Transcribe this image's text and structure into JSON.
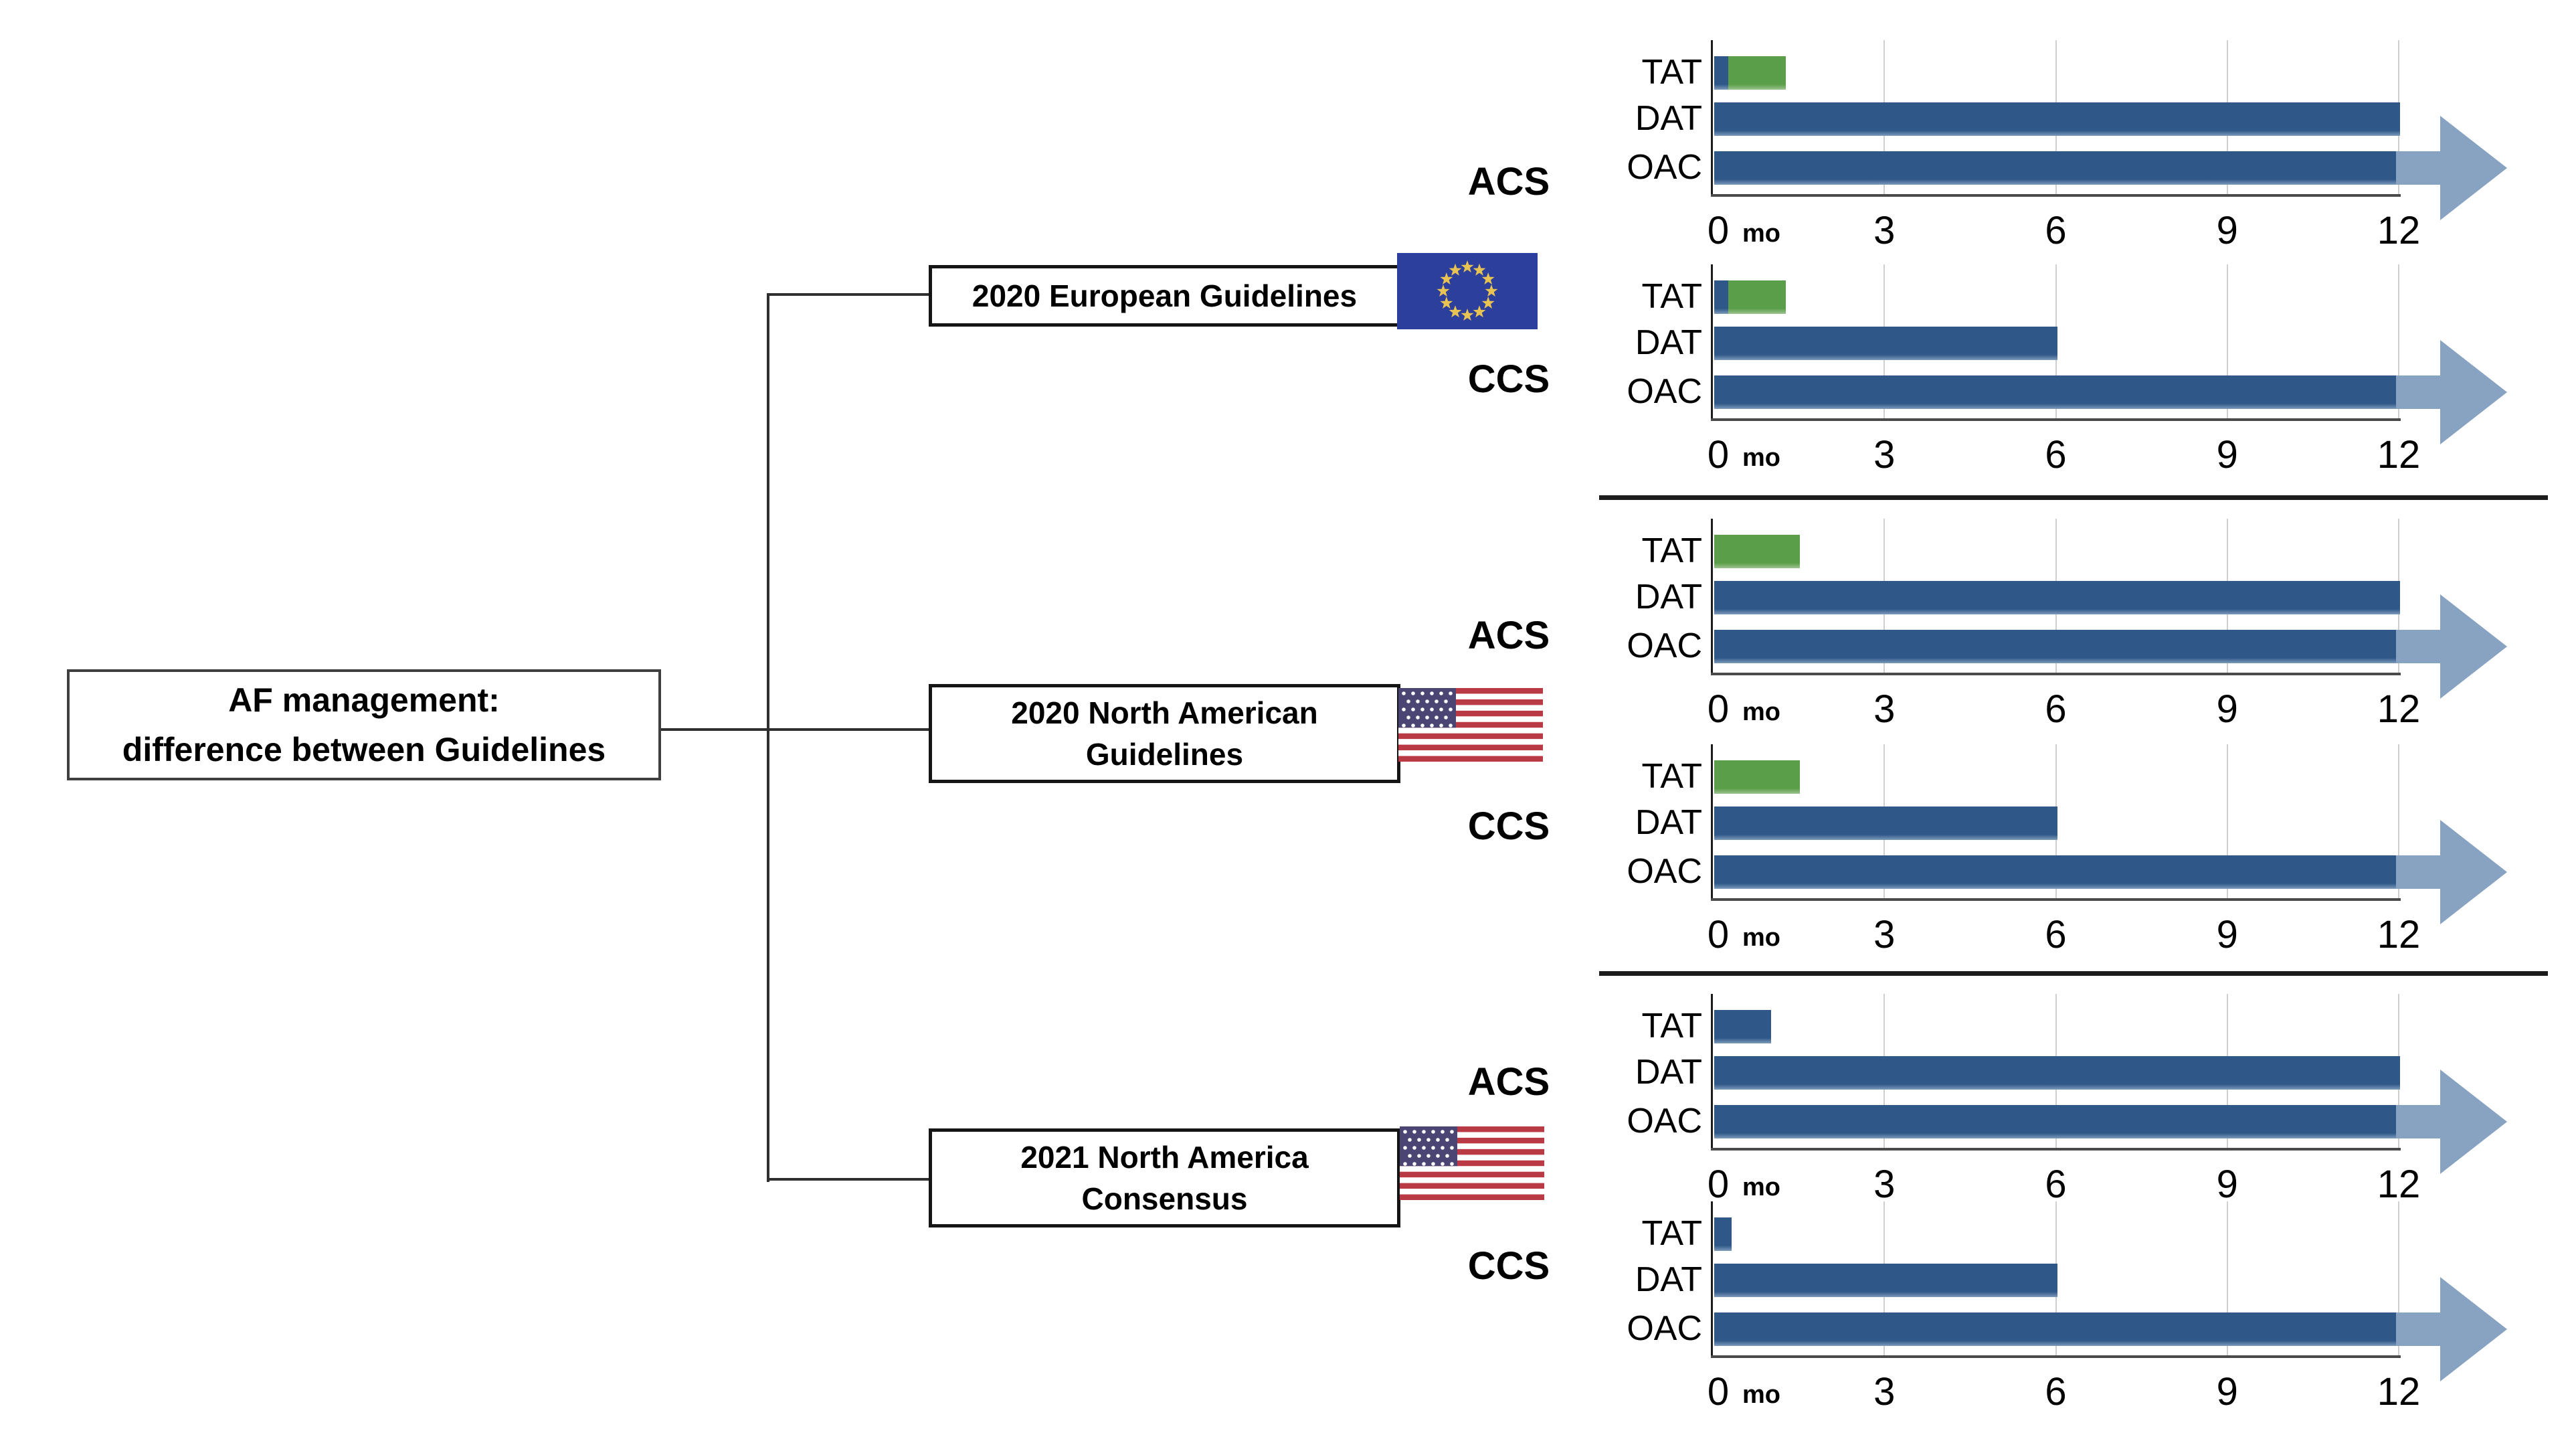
{
  "title": {
    "lines": [
      "AF management:",
      "difference between Guidelines"
    ]
  },
  "axis": {
    "ticks": [
      "0",
      "3",
      "6",
      "9",
      "12"
    ],
    "unit_label": "mo",
    "max_months": 12
  },
  "colors": {
    "bar_blue": "#2F5889",
    "bar_blue_edge": "#7E9BBC",
    "bar_green": "#5B9E49",
    "bar_green_edge": "#9DC390",
    "arrow": "#87A3C1",
    "gridline": "#CFCFCF",
    "axis_line": "#1B1B1B",
    "baseline": "#4A4A4A",
    "separator": "#1C1C1C",
    "connector": "#2E2E2E",
    "eu_blue": "#2C3F9D",
    "eu_star": "#E8C351",
    "us_red": "#B93A45",
    "us_canton": "#4A4572"
  },
  "groups": [
    {
      "id": "european-2020",
      "lines": [
        "2020 European Guidelines",
        ""
      ],
      "flag": "eu"
    },
    {
      "id": "north-american-2020",
      "lines": [
        "2020 North American",
        "Guidelines"
      ],
      "flag": "us"
    },
    {
      "id": "north-america-2021",
      "lines": [
        "2021 North America",
        "Consensus"
      ],
      "flag": "us"
    }
  ],
  "chart_data": [
    {
      "type": "bar",
      "orientation": "horizontal",
      "group": "2020 European Guidelines",
      "scenario": "ACS",
      "categories": [
        "TAT",
        "DAT",
        "OAC"
      ],
      "xlim": [
        0,
        12
      ],
      "x_unit": "months",
      "ticks": [
        0,
        3,
        6,
        9,
        12
      ],
      "grid": true,
      "rows": [
        {
          "label": "TAT",
          "segments": [
            {
              "color": "blue",
              "start": 0,
              "end": 0.25
            },
            {
              "color": "green",
              "start": 0.25,
              "end": 1.25
            }
          ],
          "arrow": false
        },
        {
          "label": "DAT",
          "segments": [
            {
              "color": "blue",
              "start": 0,
              "end": 12
            }
          ],
          "arrow": false
        },
        {
          "label": "OAC",
          "segments": [
            {
              "color": "blue",
              "start": 0,
              "end": 12
            }
          ],
          "arrow": true
        }
      ]
    },
    {
      "type": "bar",
      "orientation": "horizontal",
      "group": "2020 European Guidelines",
      "scenario": "CCS",
      "categories": [
        "TAT",
        "DAT",
        "OAC"
      ],
      "xlim": [
        0,
        12
      ],
      "x_unit": "months",
      "ticks": [
        0,
        3,
        6,
        9,
        12
      ],
      "grid": true,
      "rows": [
        {
          "label": "TAT",
          "segments": [
            {
              "color": "blue",
              "start": 0,
              "end": 0.25
            },
            {
              "color": "green",
              "start": 0.25,
              "end": 1.25
            }
          ],
          "arrow": false
        },
        {
          "label": "DAT",
          "segments": [
            {
              "color": "blue",
              "start": 0,
              "end": 6
            }
          ],
          "arrow": false
        },
        {
          "label": "OAC",
          "segments": [
            {
              "color": "blue",
              "start": 0,
              "end": 12
            }
          ],
          "arrow": true
        }
      ]
    },
    {
      "type": "bar",
      "orientation": "horizontal",
      "group": "2020 North American Guidelines",
      "scenario": "ACS",
      "categories": [
        "TAT",
        "DAT",
        "OAC"
      ],
      "xlim": [
        0,
        12
      ],
      "x_unit": "months",
      "ticks": [
        0,
        3,
        6,
        9,
        12
      ],
      "grid": true,
      "rows": [
        {
          "label": "TAT",
          "segments": [
            {
              "color": "green",
              "start": 0,
              "end": 1.5
            }
          ],
          "arrow": false
        },
        {
          "label": "DAT",
          "segments": [
            {
              "color": "blue",
              "start": 0,
              "end": 12
            }
          ],
          "arrow": false
        },
        {
          "label": "OAC",
          "segments": [
            {
              "color": "blue",
              "start": 0,
              "end": 12
            }
          ],
          "arrow": true
        }
      ]
    },
    {
      "type": "bar",
      "orientation": "horizontal",
      "group": "2020 North American Guidelines",
      "scenario": "CCS",
      "categories": [
        "TAT",
        "DAT",
        "OAC"
      ],
      "xlim": [
        0,
        12
      ],
      "x_unit": "months",
      "ticks": [
        0,
        3,
        6,
        9,
        12
      ],
      "grid": true,
      "rows": [
        {
          "label": "TAT",
          "segments": [
            {
              "color": "green",
              "start": 0,
              "end": 1.5
            }
          ],
          "arrow": false
        },
        {
          "label": "DAT",
          "segments": [
            {
              "color": "blue",
              "start": 0,
              "end": 6
            }
          ],
          "arrow": false
        },
        {
          "label": "OAC",
          "segments": [
            {
              "color": "blue",
              "start": 0,
              "end": 12
            }
          ],
          "arrow": true
        }
      ]
    },
    {
      "type": "bar",
      "orientation": "horizontal",
      "group": "2021 North America Consensus",
      "scenario": "ACS",
      "categories": [
        "TAT",
        "DAT",
        "OAC"
      ],
      "xlim": [
        0,
        12
      ],
      "x_unit": "months",
      "ticks": [
        0,
        3,
        6,
        9,
        12
      ],
      "grid": true,
      "rows": [
        {
          "label": "TAT",
          "segments": [
            {
              "color": "blue",
              "start": 0,
              "end": 1
            }
          ],
          "arrow": false
        },
        {
          "label": "DAT",
          "segments": [
            {
              "color": "blue",
              "start": 0,
              "end": 12
            }
          ],
          "arrow": false
        },
        {
          "label": "OAC",
          "segments": [
            {
              "color": "blue",
              "start": 0,
              "end": 12
            }
          ],
          "arrow": true
        }
      ]
    },
    {
      "type": "bar",
      "orientation": "horizontal",
      "group": "2021 North America Consensus",
      "scenario": "CCS",
      "categories": [
        "TAT",
        "DAT",
        "OAC"
      ],
      "xlim": [
        0,
        12
      ],
      "x_unit": "months",
      "ticks": [
        0,
        3,
        6,
        9,
        12
      ],
      "grid": true,
      "rows": [
        {
          "label": "TAT",
          "segments": [
            {
              "color": "blue",
              "start": 0,
              "end": 0.3
            }
          ],
          "arrow": false
        },
        {
          "label": "DAT",
          "segments": [
            {
              "color": "blue",
              "start": 0,
              "end": 6
            }
          ],
          "arrow": false
        },
        {
          "label": "OAC",
          "segments": [
            {
              "color": "blue",
              "start": 0,
              "end": 12
            }
          ],
          "arrow": true
        }
      ]
    }
  ]
}
